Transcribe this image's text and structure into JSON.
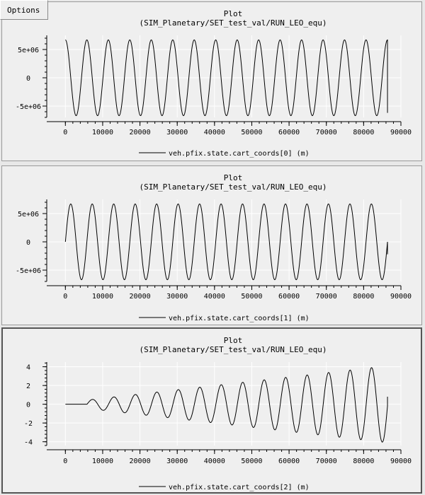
{
  "toolbar": {
    "options_label": "Options"
  },
  "colors": {
    "background": "#efefef",
    "grid": "#ffffff",
    "axis": "#000000",
    "series": "#000000"
  },
  "chart_data": [
    {
      "type": "line",
      "title": "Plot",
      "subtitle": "(SIM_Planetary/SET_test_val/RUN_LEO_equ)",
      "xlim": [
        -5000,
        90000
      ],
      "ylim": [
        -7000000,
        7500000
      ],
      "x_ticks": [
        0,
        10000,
        20000,
        30000,
        40000,
        50000,
        60000,
        70000,
        80000,
        90000
      ],
      "x_tick_labels": [
        "0",
        "10000",
        "20000",
        "30000",
        "40000",
        "50000",
        "60000",
        "70000",
        "80000",
        "90000"
      ],
      "y_ticks": [
        5000000,
        0,
        -5000000
      ],
      "y_tick_labels": [
        "5e+06",
        "0",
        "-5e+06"
      ],
      "grid": true,
      "legend_position": "bottom-center",
      "series": [
        {
          "name": "veh.pfix.state.cart_coords[0] (m)",
          "x_range": [
            0,
            86400
          ],
          "period": 5760,
          "amplitude": 6700000,
          "phase": "cosine",
          "end_value": -6200000
        }
      ]
    },
    {
      "type": "line",
      "title": "Plot",
      "subtitle": "(SIM_Planetary/SET_test_val/RUN_LEO_equ)",
      "xlim": [
        -5000,
        90000
      ],
      "ylim": [
        -7000000,
        7500000
      ],
      "x_ticks": [
        0,
        10000,
        20000,
        30000,
        40000,
        50000,
        60000,
        70000,
        80000,
        90000
      ],
      "x_tick_labels": [
        "0",
        "10000",
        "20000",
        "30000",
        "40000",
        "50000",
        "60000",
        "70000",
        "80000",
        "90000"
      ],
      "y_ticks": [
        5000000,
        0,
        -5000000
      ],
      "y_tick_labels": [
        "5e+06",
        "0",
        "-5e+06"
      ],
      "grid": true,
      "legend_position": "bottom-center",
      "series": [
        {
          "name": "veh.pfix.state.cart_coords[1] (m)",
          "x_range": [
            0,
            86400
          ],
          "period": 5760,
          "amplitude": 6700000,
          "phase": "sine",
          "end_value": -2200000
        }
      ]
    },
    {
      "type": "line",
      "title": "Plot",
      "subtitle": "(SIM_Planetary/SET_test_val/RUN_LEO_equ)",
      "xlim": [
        -5000,
        90000
      ],
      "ylim": [
        -4.4,
        4.5
      ],
      "x_ticks": [
        0,
        10000,
        20000,
        30000,
        40000,
        50000,
        60000,
        70000,
        80000,
        90000
      ],
      "x_tick_labels": [
        "0",
        "10000",
        "20000",
        "30000",
        "40000",
        "50000",
        "60000",
        "70000",
        "80000",
        "90000"
      ],
      "y_ticks": [
        4,
        2,
        0,
        -2,
        -4
      ],
      "y_tick_labels": [
        "4",
        "2",
        "0",
        "-2",
        "-4"
      ],
      "grid": true,
      "legend_position": "bottom-center",
      "series": [
        {
          "name": "veh.pfix.state.cart_coords[2] (m)",
          "x_range": [
            0,
            86400
          ],
          "flat_until": 5800,
          "period": 5760,
          "peak_amplitude_at_end": 4.1,
          "end_value": 0.8
        }
      ]
    }
  ]
}
